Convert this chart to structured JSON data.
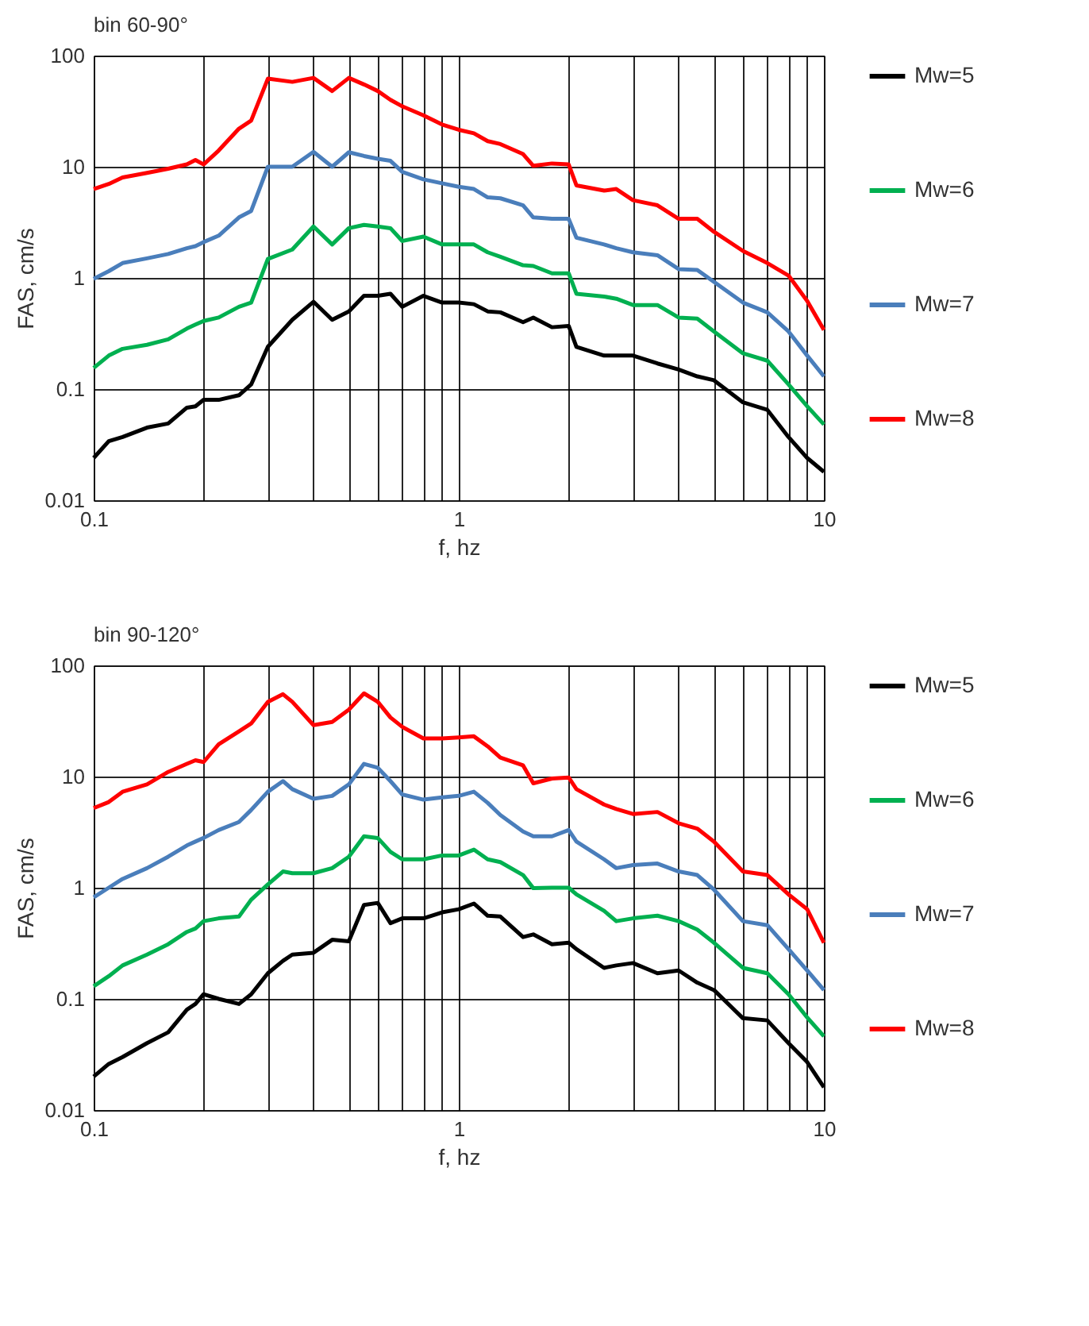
{
  "chart_data": [
    {
      "type": "line",
      "title": "bin 60-90°",
      "xlabel": "f, hz",
      "ylabel": "FAS, cm/s",
      "log": "xy",
      "grid": true,
      "legend": "right",
      "marker": "none",
      "line_style": "solid",
      "xlim": [
        0.1,
        10
      ],
      "ylim": [
        0.01,
        100
      ],
      "xticks": [
        0.1,
        {
          "value": 0.2,
          "label": null
        },
        {
          "value": 0.3,
          "label": null
        },
        {
          "value": 0.4,
          "label": null
        },
        {
          "value": 0.5,
          "label": null
        },
        {
          "value": 0.6,
          "label": null
        },
        {
          "value": 0.7,
          "label": null
        },
        {
          "value": 0.8,
          "label": null
        },
        {
          "value": 0.9,
          "label": null
        },
        1,
        {
          "value": 2,
          "label": null
        },
        {
          "value": 3,
          "label": null
        },
        {
          "value": 4,
          "label": null
        },
        {
          "value": 5,
          "label": null
        },
        {
          "value": 6,
          "label": null
        },
        {
          "value": 7,
          "label": null
        },
        {
          "value": 8,
          "label": null
        },
        {
          "value": 9,
          "label": null
        },
        10
      ],
      "yticks": [
        0.01,
        0.1,
        1,
        10,
        100
      ],
      "x": [
        0.1,
        0.11,
        0.12,
        0.14,
        0.16,
        0.18,
        0.19,
        0.2,
        0.22,
        0.25,
        0.27,
        0.3,
        0.35,
        0.4,
        0.45,
        0.5,
        0.55,
        0.6,
        0.65,
        0.7,
        0.8,
        0.9,
        1,
        1.1,
        1.2,
        1.3,
        1.5,
        1.6,
        1.8,
        2,
        2.1,
        2.5,
        2.7,
        3,
        3.5,
        4,
        4.5,
        5,
        6,
        7,
        8,
        9,
        10
      ],
      "series": [
        {
          "name": "Mw=5",
          "color": "#000000",
          "values": [
            0.024,
            0.034,
            0.037,
            0.045,
            0.049,
            0.068,
            0.07,
            0.08,
            0.08,
            0.088,
            0.11,
            0.24,
            0.42,
            0.61,
            0.42,
            0.5,
            0.69,
            0.69,
            0.72,
            0.55,
            0.69,
            0.6,
            0.6,
            0.58,
            0.5,
            0.49,
            0.4,
            0.44,
            0.36,
            0.37,
            0.24,
            0.2,
            0.2,
            0.2,
            0.17,
            0.15,
            0.13,
            0.12,
            0.076,
            0.065,
            0.037,
            0.024,
            0.018
          ]
        },
        {
          "name": "Mw=6",
          "color": "#00b050",
          "values": [
            0.155,
            0.2,
            0.23,
            0.25,
            0.28,
            0.35,
            0.38,
            0.41,
            0.44,
            0.55,
            0.6,
            1.48,
            1.8,
            2.9,
            2.0,
            2.8,
            3.0,
            2.9,
            2.8,
            2.15,
            2.35,
            2.0,
            2.0,
            2.0,
            1.7,
            1.55,
            1.3,
            1.28,
            1.1,
            1.1,
            0.72,
            0.68,
            0.65,
            0.57,
            0.57,
            0.44,
            0.43,
            0.33,
            0.21,
            0.18,
            0.11,
            0.07,
            0.048
          ]
        },
        {
          "name": "Mw=7",
          "color": "#4a7ebb",
          "values": [
            0.98,
            1.15,
            1.36,
            1.5,
            1.64,
            1.85,
            1.93,
            2.1,
            2.4,
            3.5,
            4,
            10,
            10,
            13.6,
            10,
            13.5,
            12.5,
            11.8,
            11.3,
            9,
            7.7,
            7.1,
            6.6,
            6.3,
            5.3,
            5.2,
            4.5,
            3.5,
            3.4,
            3.4,
            2.3,
            2.0,
            1.85,
            1.7,
            1.6,
            1.2,
            1.18,
            0.92,
            0.6,
            0.49,
            0.33,
            0.2,
            0.13
          ]
        },
        {
          "name": "Mw=8",
          "color": "#ff0000",
          "values": [
            6.3,
            7,
            8,
            8.8,
            9.6,
            10.5,
            11.5,
            10.5,
            14,
            22,
            26,
            62,
            58,
            63,
            48,
            63,
            55,
            48,
            40,
            35,
            29,
            24,
            21.5,
            20,
            17,
            16,
            13,
            10.2,
            10.7,
            10.5,
            6.8,
            6.1,
            6.3,
            5,
            4.5,
            3.4,
            3.4,
            2.6,
            1.75,
            1.36,
            1.05,
            0.62,
            0.34
          ]
        }
      ]
    },
    {
      "type": "line",
      "title": "bin 90-120°",
      "xlabel": "f, hz",
      "ylabel": "FAS, cm/s",
      "log": "xy",
      "grid": true,
      "legend": "right",
      "marker": "none",
      "line_style": "solid",
      "xlim": [
        0.1,
        10
      ],
      "ylim": [
        0.01,
        100
      ],
      "xticks": [
        0.1,
        {
          "value": 0.2,
          "label": null
        },
        {
          "value": 0.3,
          "label": null
        },
        {
          "value": 0.4,
          "label": null
        },
        {
          "value": 0.5,
          "label": null
        },
        {
          "value": 0.6,
          "label": null
        },
        {
          "value": 0.7,
          "label": null
        },
        {
          "value": 0.8,
          "label": null
        },
        {
          "value": 0.9,
          "label": null
        },
        1,
        {
          "value": 2,
          "label": null
        },
        {
          "value": 3,
          "label": null
        },
        {
          "value": 4,
          "label": null
        },
        {
          "value": 5,
          "label": null
        },
        {
          "value": 6,
          "label": null
        },
        {
          "value": 7,
          "label": null
        },
        {
          "value": 8,
          "label": null
        },
        {
          "value": 9,
          "label": null
        },
        10
      ],
      "yticks": [
        0.01,
        0.1,
        1,
        10,
        100
      ],
      "x": [
        0.1,
        0.11,
        0.12,
        0.14,
        0.16,
        0.18,
        0.19,
        0.2,
        0.22,
        0.25,
        0.27,
        0.3,
        0.33,
        0.35,
        0.4,
        0.45,
        0.5,
        0.55,
        0.6,
        0.65,
        0.7,
        0.8,
        0.9,
        1,
        1.1,
        1.2,
        1.3,
        1.5,
        1.6,
        1.8,
        2,
        2.1,
        2.5,
        2.7,
        3,
        3.5,
        4,
        4.5,
        5,
        6,
        7,
        8,
        9,
        10
      ],
      "series": [
        {
          "name": "Mw=5",
          "color": "#000000",
          "values": [
            0.02,
            0.026,
            0.03,
            0.04,
            0.05,
            0.08,
            0.09,
            0.11,
            0.1,
            0.09,
            0.11,
            0.17,
            0.22,
            0.25,
            0.26,
            0.34,
            0.33,
            0.7,
            0.73,
            0.48,
            0.53,
            0.53,
            0.6,
            0.64,
            0.72,
            0.56,
            0.55,
            0.36,
            0.38,
            0.31,
            0.32,
            0.28,
            0.19,
            0.2,
            0.21,
            0.17,
            0.18,
            0.14,
            0.12,
            0.067,
            0.064,
            0.04,
            0.027,
            0.016
          ]
        },
        {
          "name": "Mw=6",
          "color": "#00b050",
          "values": [
            0.13,
            0.16,
            0.2,
            0.25,
            0.31,
            0.4,
            0.43,
            0.5,
            0.53,
            0.55,
            0.78,
            1.07,
            1.4,
            1.35,
            1.35,
            1.5,
            1.9,
            2.9,
            2.8,
            2.1,
            1.8,
            1.8,
            1.95,
            1.95,
            2.2,
            1.8,
            1.7,
            1.3,
            0.99,
            1.0,
            1.0,
            0.87,
            0.62,
            0.5,
            0.53,
            0.56,
            0.5,
            0.42,
            0.32,
            0.19,
            0.17,
            0.11,
            0.068,
            0.046
          ]
        },
        {
          "name": "Mw=7",
          "color": "#4a7ebb",
          "values": [
            0.82,
            1.0,
            1.2,
            1.5,
            1.9,
            2.4,
            2.6,
            2.8,
            3.3,
            3.9,
            5,
            7.3,
            9.1,
            7.7,
            6.3,
            6.7,
            8.5,
            13,
            12,
            9.1,
            6.9,
            6.2,
            6.5,
            6.7,
            7.3,
            5.8,
            4.5,
            3.2,
            2.9,
            2.9,
            3.3,
            2.6,
            1.8,
            1.5,
            1.6,
            1.65,
            1.4,
            1.3,
            0.96,
            0.5,
            0.46,
            0.28,
            0.18,
            0.12
          ]
        },
        {
          "name": "Mw=8",
          "color": "#ff0000",
          "values": [
            5.2,
            5.9,
            7.3,
            8.5,
            11,
            13,
            14,
            13.5,
            19.5,
            25.5,
            30,
            47,
            55,
            47,
            29,
            31,
            40,
            56,
            47,
            34,
            28,
            22,
            22,
            22.5,
            23,
            18.7,
            14.8,
            12.6,
            8.7,
            9.6,
            9.8,
            7.7,
            5.6,
            5.1,
            4.6,
            4.8,
            3.8,
            3.4,
            2.6,
            1.4,
            1.3,
            0.87,
            0.64,
            0.32
          ]
        }
      ]
    }
  ]
}
